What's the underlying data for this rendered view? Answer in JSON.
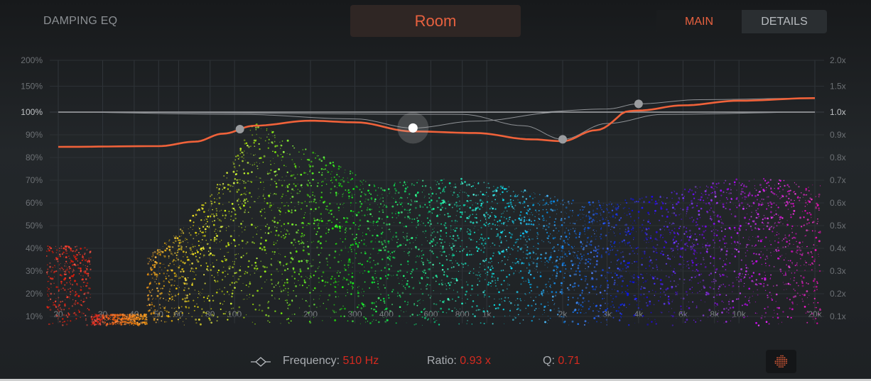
{
  "header": {
    "title": "DAMPING EQ",
    "preset": "Room",
    "tabs": [
      {
        "label": "MAIN",
        "active": true
      },
      {
        "label": "DETAILS",
        "active": false
      }
    ]
  },
  "graph": {
    "x_ticks": [
      "20",
      "30",
      "40",
      "50",
      "60",
      "80",
      "100",
      "200",
      "300",
      "400",
      "600",
      "800",
      "1k",
      "2k",
      "3k",
      "4k",
      "6k",
      "8k",
      "10k",
      "20k"
    ],
    "x_tick_values": [
      20,
      30,
      40,
      50,
      60,
      80,
      100,
      200,
      300,
      400,
      600,
      800,
      1000,
      2000,
      3000,
      4000,
      6000,
      8000,
      10000,
      20000
    ],
    "y_left_ticks": [
      "200%",
      "150%",
      "100%",
      "90%",
      "80%",
      "70%",
      "60%",
      "50%",
      "40%",
      "30%",
      "20%",
      "10%"
    ],
    "y_right_ticks": [
      "2.0x",
      "1.5x",
      "1.0x",
      "0.9x",
      "0.8x",
      "0.7x",
      "0.6x",
      "0.5x",
      "0.4x",
      "0.3x",
      "0.2x",
      "0.1x"
    ],
    "y_values": [
      2.0,
      1.5,
      1.0,
      0.9,
      0.8,
      0.7,
      0.6,
      0.5,
      0.4,
      0.3,
      0.2,
      0.1
    ],
    "bands": [
      {
        "frequency": 105,
        "ratio": 0.925
      },
      {
        "frequency": 510,
        "ratio": 0.93,
        "selected": true
      },
      {
        "frequency": 2000,
        "ratio": 0.88
      },
      {
        "frequency": 4000,
        "ratio": 1.16
      }
    ],
    "colors": {
      "curve": "#f0623a",
      "reference": "#d8d8d8",
      "accent": "#e8613f"
    }
  },
  "footer": {
    "frequency_label": "Frequency:",
    "frequency_value": "510 Hz",
    "ratio_label": "Ratio:",
    "ratio_value": "0.93 x",
    "q_label": "Q:",
    "q_value": "0.71",
    "band_icon": "bell-filter-icon",
    "view_icon": "particle-view-icon"
  }
}
